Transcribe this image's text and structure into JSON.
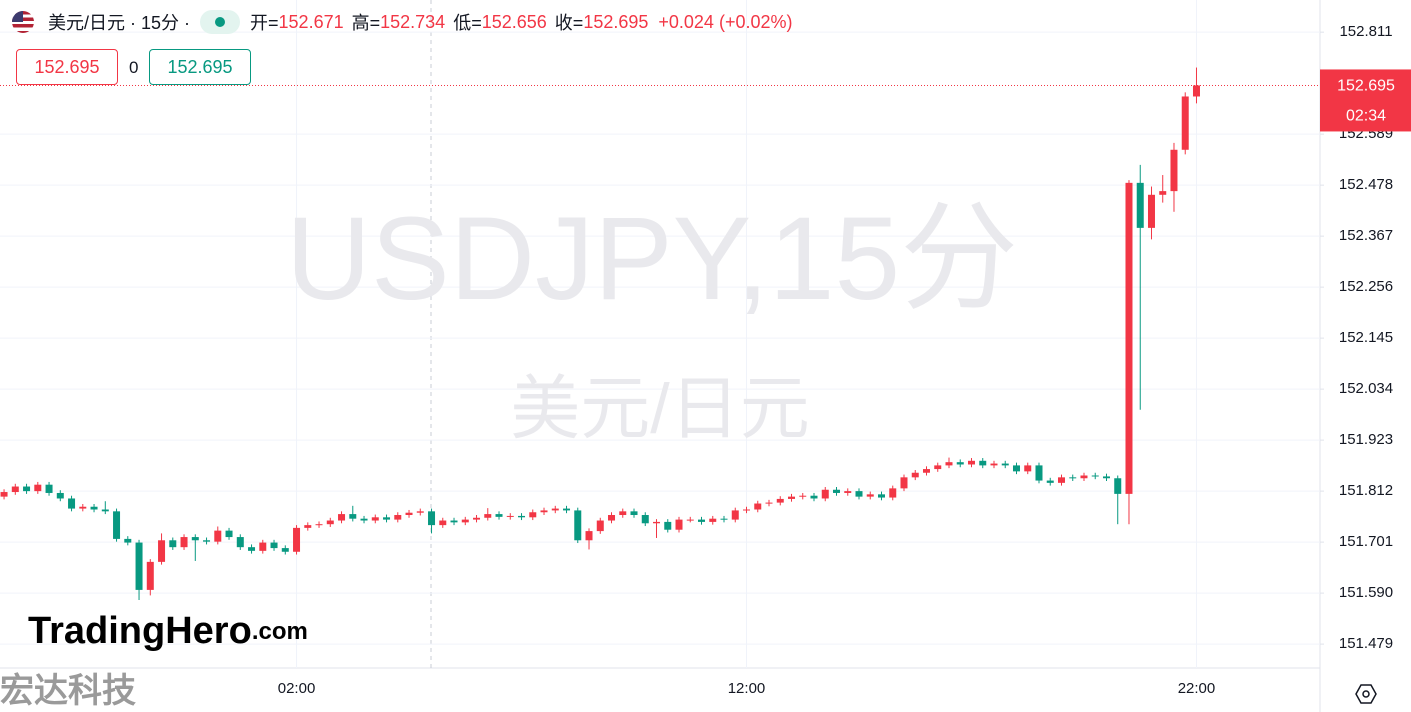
{
  "header": {
    "symbol": "美元/日元 · 15分 ·",
    "open_label": "开=",
    "high_label": "高=",
    "low_label": "低=",
    "close_label": "收=",
    "change": "+0.024 (+0.02%)",
    "bid": "152.695",
    "spread": "0",
    "ask": "152.695"
  },
  "watermark": {
    "ticker": "USDJPY,15分",
    "name": "美元/日元"
  },
  "logo": {
    "name": "TradingHero",
    "domain": ".com",
    "company": "宏达科技"
  },
  "chart_data": {
    "type": "candlestick",
    "up_color": "#f23645",
    "down_color": "#089981",
    "grid": true,
    "price_label_timer": "02:34",
    "categories": [
      null,
      null,
      null,
      null,
      null,
      null,
      null,
      null,
      null,
      null,
      null,
      null,
      null,
      null,
      null,
      null,
      null,
      null,
      null,
      null,
      null,
      null,
      null,
      null,
      null,
      null,
      "02:00",
      null,
      null,
      null,
      null,
      null,
      null,
      null,
      null,
      null,
      null,
      null,
      null,
      null,
      null,
      null,
      null,
      null,
      null,
      null,
      null,
      null,
      null,
      null,
      null,
      null,
      null,
      null,
      null,
      null,
      null,
      null,
      null,
      null,
      null,
      null,
      null,
      null,
      null,
      null,
      "12:00",
      null,
      null,
      null,
      null,
      null,
      null,
      null,
      null,
      null,
      null,
      null,
      null,
      null,
      null,
      null,
      null,
      null,
      null,
      null,
      null,
      null,
      null,
      null,
      null,
      null,
      null,
      null,
      null,
      null,
      null,
      null,
      null,
      null,
      null,
      null,
      null,
      null,
      null,
      null,
      "22:00"
    ],
    "open": [
      151.8,
      151.81,
      151.822,
      151.812,
      151.826,
      151.808,
      151.796,
      151.774,
      151.778,
      151.772,
      151.768,
      151.708,
      151.7,
      151.597,
      151.658,
      151.705,
      151.69,
      151.712,
      151.705,
      151.702,
      151.726,
      151.712,
      151.69,
      151.682,
      151.7,
      151.688,
      151.68,
      151.732,
      151.738,
      151.74,
      151.748,
      151.762,
      151.752,
      151.748,
      151.755,
      151.75,
      151.76,
      151.765,
      151.768,
      151.738,
      151.748,
      151.744,
      151.75,
      151.754,
      151.762,
      151.756,
      151.758,
      151.755,
      151.766,
      151.77,
      151.774,
      151.77,
      151.705,
      151.725,
      151.748,
      151.76,
      151.768,
      151.76,
      151.742,
      151.745,
      151.728,
      151.75,
      151.75,
      151.745,
      151.752,
      151.75,
      151.77,
      151.772,
      151.785,
      151.787,
      151.795,
      151.8,
      151.802,
      151.796,
      151.815,
      151.808,
      151.812,
      151.8,
      151.805,
      151.798,
      151.818,
      151.842,
      151.852,
      151.86,
      151.868,
      151.875,
      151.87,
      151.878,
      151.868,
      151.872,
      151.868,
      151.855,
      151.868,
      151.835,
      151.83,
      151.842,
      151.84,
      151.846,
      151.844,
      151.84,
      151.806,
      152.483,
      152.385,
      152.457,
      152.465,
      152.555,
      152.671
    ],
    "high": [
      151.816,
      151.828,
      151.828,
      151.832,
      151.832,
      151.814,
      151.802,
      151.784,
      151.784,
      151.79,
      151.774,
      151.714,
      151.706,
      151.664,
      151.72,
      151.711,
      151.718,
      151.718,
      151.711,
      151.735,
      151.732,
      151.718,
      151.696,
      151.706,
      151.706,
      151.694,
      151.738,
      151.744,
      151.746,
      151.754,
      151.768,
      151.78,
      151.758,
      151.761,
      151.761,
      151.766,
      151.771,
      151.774,
      151.774,
      151.754,
      151.754,
      151.756,
      151.76,
      151.775,
      151.768,
      151.764,
      151.764,
      151.772,
      151.776,
      151.78,
      151.78,
      151.776,
      151.731,
      151.754,
      151.766,
      151.774,
      151.774,
      151.766,
      151.751,
      151.751,
      151.756,
      151.756,
      151.756,
      151.758,
      151.758,
      151.776,
      151.778,
      151.791,
      151.793,
      151.801,
      151.806,
      151.808,
      151.808,
      151.821,
      151.821,
      151.818,
      151.818,
      151.811,
      151.811,
      151.824,
      151.848,
      151.858,
      151.866,
      151.874,
      151.885,
      151.881,
      151.884,
      151.884,
      151.878,
      151.878,
      151.874,
      151.874,
      151.874,
      151.841,
      151.848,
      151.848,
      151.852,
      151.852,
      151.85,
      151.846,
      152.489,
      152.522,
      152.475,
      152.5,
      152.57,
      152.68,
      152.734
    ],
    "low": [
      151.794,
      151.804,
      151.806,
      151.806,
      151.802,
      151.79,
      151.768,
      151.768,
      151.766,
      151.762,
      151.702,
      151.694,
      151.575,
      151.585,
      151.652,
      151.684,
      151.684,
      151.66,
      151.696,
      151.696,
      151.706,
      151.684,
      151.676,
      151.676,
      151.682,
      151.674,
      151.674,
      151.726,
      151.732,
      151.734,
      151.742,
      151.746,
      151.742,
      151.742,
      151.744,
      151.744,
      151.754,
      151.759,
      151.72,
      151.732,
      151.738,
      151.738,
      151.744,
      151.748,
      151.75,
      151.75,
      151.749,
      151.749,
      151.76,
      151.764,
      151.764,
      151.699,
      151.685,
      151.719,
      151.742,
      151.754,
      151.754,
      151.736,
      151.71,
      151.722,
      151.722,
      151.744,
      151.739,
      151.739,
      151.744,
      151.744,
      151.764,
      151.766,
      151.779,
      151.781,
      151.789,
      151.794,
      151.79,
      151.79,
      151.802,
      151.802,
      151.794,
      151.794,
      151.792,
      151.792,
      151.812,
      151.836,
      151.846,
      151.854,
      151.862,
      151.864,
      151.864,
      151.862,
      151.862,
      151.862,
      151.849,
      151.849,
      151.829,
      151.824,
      151.824,
      151.834,
      151.834,
      151.838,
      151.834,
      151.74,
      151.74,
      151.989,
      152.36,
      152.44,
      152.42,
      152.545,
      152.656
    ],
    "close": [
      151.81,
      151.822,
      151.812,
      151.826,
      151.808,
      151.796,
      151.774,
      151.778,
      151.772,
      151.768,
      151.708,
      151.7,
      151.597,
      151.658,
      151.705,
      151.69,
      151.712,
      151.705,
      151.702,
      151.726,
      151.712,
      151.69,
      151.682,
      151.7,
      151.688,
      151.68,
      151.732,
      151.738,
      151.74,
      151.748,
      151.762,
      151.752,
      151.748,
      151.755,
      151.75,
      151.76,
      151.765,
      151.768,
      151.738,
      151.748,
      151.744,
      151.75,
      151.754,
      151.762,
      151.756,
      151.758,
      151.755,
      151.766,
      151.77,
      151.774,
      151.77,
      151.705,
      151.725,
      151.748,
      151.76,
      151.768,
      151.76,
      151.742,
      151.745,
      151.728,
      151.75,
      151.75,
      151.745,
      151.752,
      151.75,
      151.77,
      151.772,
      151.785,
      151.787,
      151.795,
      151.8,
      151.802,
      151.796,
      151.815,
      151.808,
      151.812,
      151.8,
      151.805,
      151.798,
      151.818,
      151.842,
      151.852,
      151.86,
      151.868,
      151.875,
      151.87,
      151.878,
      151.868,
      151.872,
      151.868,
      151.855,
      151.868,
      151.835,
      151.83,
      151.842,
      151.84,
      151.846,
      151.844,
      151.84,
      151.806,
      152.483,
      152.385,
      152.457,
      152.465,
      152.555,
      152.671,
      152.695
    ],
    "xlim": [
      -0.36,
      116.98
    ],
    "ylim": [
      151.427,
      152.881
    ],
    "yticks": [
      151.479,
      {
        "value": 151.59,
        "label": "151.590"
      },
      151.701,
      151.812,
      151.923,
      152.034,
      152.145,
      152.256,
      152.367,
      152.478,
      152.589,
      152.811
    ]
  }
}
